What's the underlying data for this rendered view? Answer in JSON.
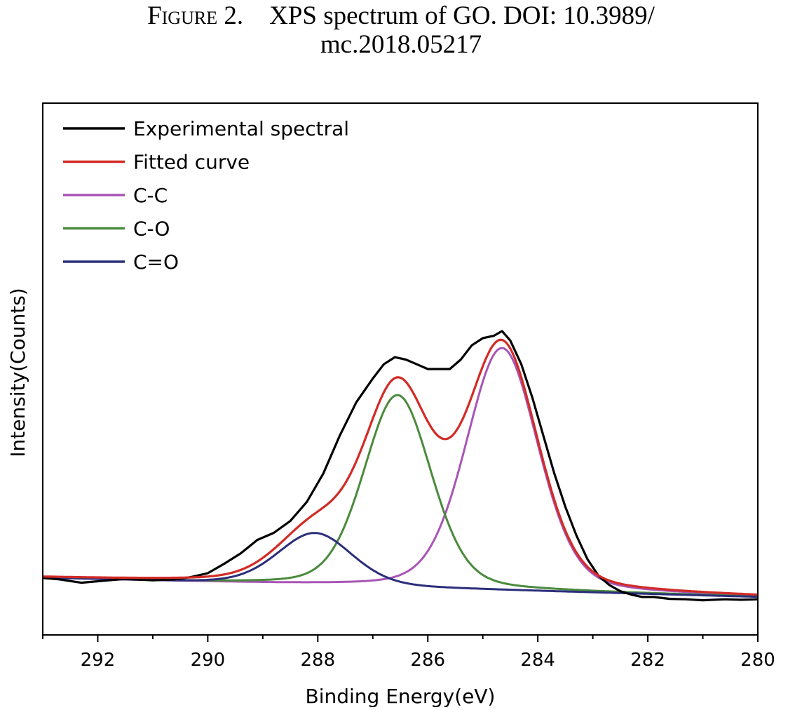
{
  "caption": {
    "prefix": "Figure 2.",
    "line1": "XPS spectrum of GO. DOI: 10.3989/",
    "line2": "mc.2018.05217"
  },
  "chart_data": {
    "type": "line",
    "title": "",
    "xlabel": "Binding Energy(eV)",
    "ylabel": "Intensity(Counts)",
    "xlim": [
      293,
      280
    ],
    "x_reversed": true,
    "ylim": [
      -0.12,
      1.0
    ],
    "y_ticks_shown": false,
    "x_ticks": [
      292,
      290,
      288,
      286,
      284,
      282,
      280
    ],
    "x_tick_labels": [
      "292",
      "290",
      "288",
      "286",
      "284",
      "282",
      "280"
    ],
    "grid": false,
    "legend_position": "top-left",
    "baseline": {
      "left": 0.0,
      "right": -0.04
    },
    "components": [
      {
        "name": "C-C",
        "center": 284.65,
        "height": 0.51,
        "fwhm": 1.55,
        "color": "#a855b5"
      },
      {
        "name": "C-O",
        "center": 286.55,
        "height": 0.405,
        "fwhm": 1.45,
        "color": "#4a8a3c"
      },
      {
        "name": "C=O",
        "center": 288.05,
        "height": 0.11,
        "fwhm": 1.6,
        "color": "#2b2f7a"
      }
    ],
    "series": [
      {
        "name": "Experimental spectral",
        "color": "#000000",
        "x": [
          293.0,
          292.7,
          292.3,
          291.9,
          291.5,
          291.0,
          290.6,
          290.3,
          290.0,
          289.7,
          289.4,
          289.1,
          288.8,
          288.5,
          288.2,
          287.9,
          287.6,
          287.3,
          287.0,
          286.8,
          286.6,
          286.4,
          286.2,
          286.0,
          285.8,
          285.6,
          285.4,
          285.2,
          285.0,
          284.8,
          284.65,
          284.5,
          284.3,
          284.1,
          283.9,
          283.7,
          283.5,
          283.3,
          283.1,
          282.9,
          282.7,
          282.5,
          282.3,
          282.1,
          281.9,
          281.6,
          281.3,
          281.0,
          280.6,
          280.3,
          280.0
        ],
        "y": [
          0.0,
          -0.003,
          -0.01,
          -0.006,
          -0.002,
          -0.005,
          -0.003,
          0.002,
          0.01,
          0.03,
          0.052,
          0.08,
          0.095,
          0.12,
          0.16,
          0.22,
          0.3,
          0.37,
          0.42,
          0.45,
          0.465,
          0.46,
          0.45,
          0.44,
          0.44,
          0.44,
          0.46,
          0.49,
          0.505,
          0.51,
          0.52,
          0.5,
          0.45,
          0.38,
          0.3,
          0.22,
          0.15,
          0.09,
          0.04,
          0.005,
          -0.015,
          -0.028,
          -0.035,
          -0.04,
          -0.04,
          -0.044,
          -0.045,
          -0.047,
          -0.045,
          -0.046,
          -0.045
        ]
      },
      {
        "name": "Fitted curve",
        "color": "#d22b26"
      },
      {
        "name": "C-C",
        "color": "#a855b5"
      },
      {
        "name": "C-O",
        "color": "#4a8a3c"
      },
      {
        "name": "C=O",
        "color": "#2b2f7a"
      }
    ]
  }
}
